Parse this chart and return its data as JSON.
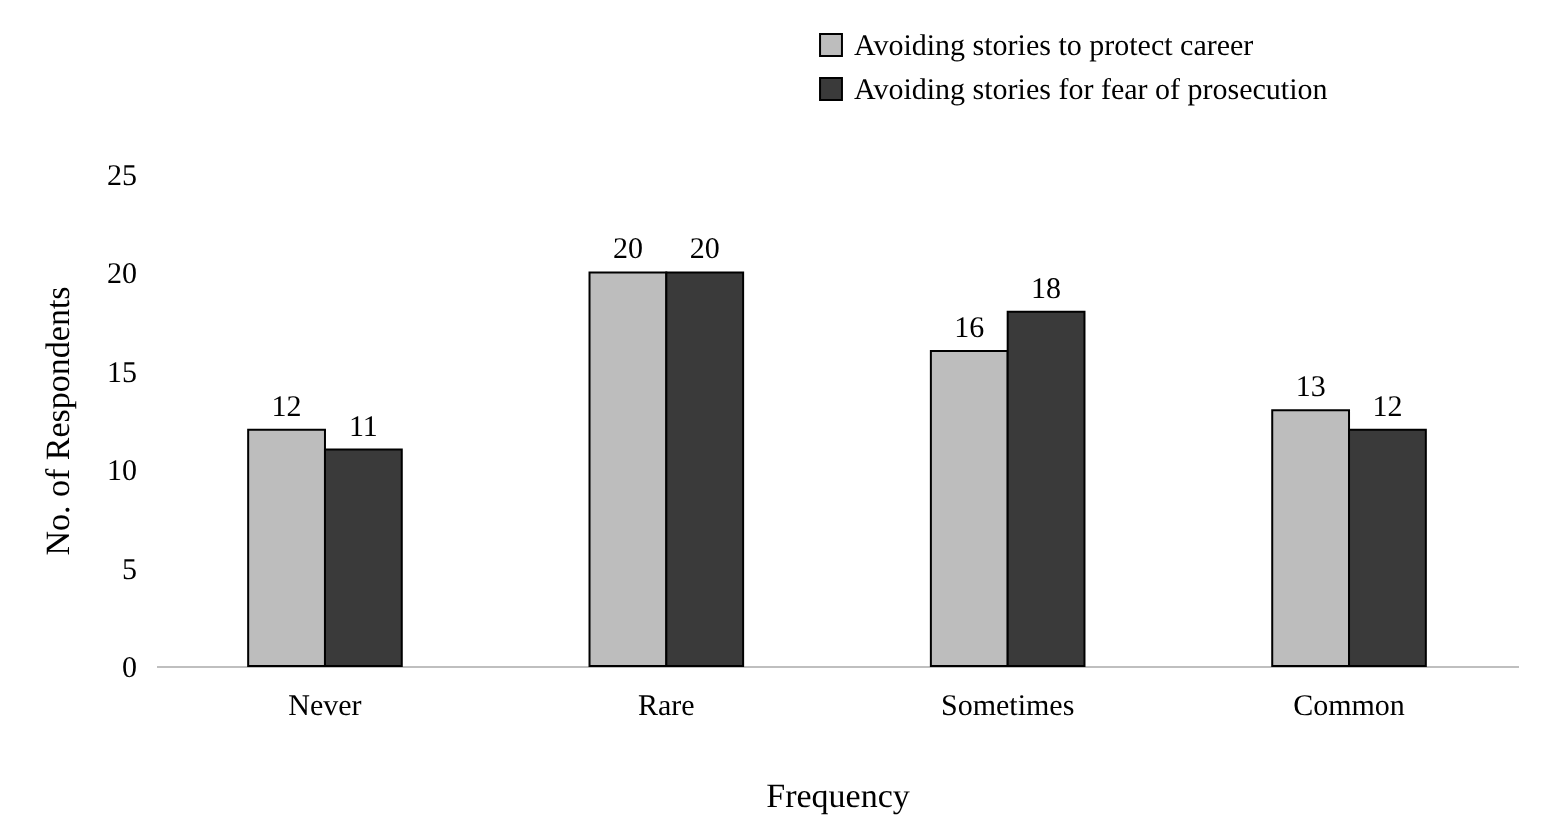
{
  "chart_data": {
    "type": "bar",
    "xlabel": "Frequency",
    "ylabel": "No. of Respondents",
    "categories": [
      "Never",
      "Rare",
      "Sometimes",
      "Common"
    ],
    "series": [
      {
        "name": "Avoiding stories to protect career",
        "color": "#bdbdbd",
        "values": [
          12,
          20,
          16,
          13
        ]
      },
      {
        "name": "Avoiding stories for fear of prosecution",
        "color": "#3a3a3a",
        "values": [
          11,
          20,
          18,
          12
        ]
      }
    ],
    "ylim": [
      0,
      25
    ],
    "yticks": [
      0,
      5,
      10,
      15,
      20,
      25
    ],
    "grid": false,
    "legend": "top right",
    "data_labels": true
  }
}
